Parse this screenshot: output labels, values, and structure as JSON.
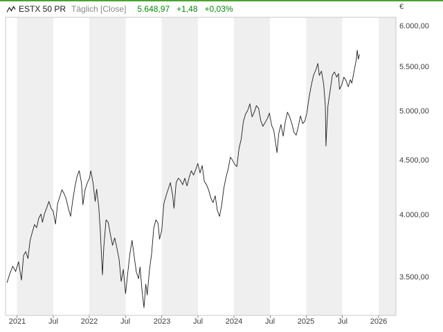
{
  "header": {
    "instrument": "ESTX 50 PR",
    "mode": "Täglich [Close]",
    "price": "5.648,97",
    "change_abs": "+1,48",
    "change_pct": "+0,03%"
  },
  "colors": {
    "accent_green": "#4aa32e",
    "quote_green": "#008800",
    "line": "#1c1c1c",
    "band_light": "#efefef",
    "band_white": "#ffffff",
    "plot_border": "#c9c9c9",
    "tick": "#8c8c8c",
    "axis_text": "#3c3c3c",
    "muted_text": "#878787"
  },
  "chart_data": {
    "type": "line",
    "title": "ESTX 50 PR",
    "subtitle": "Täglich [Close]",
    "currency": "€",
    "y_scale": "log",
    "grid": "alternating half-year vertical bands, no horizontal gridlines",
    "legend_position": "none",
    "x_range": [
      2020.84,
      2026.24
    ],
    "y_range": [
      3226,
      6117
    ],
    "last_close": 5648.97,
    "change_abs": 1.48,
    "change_pct": 0.03,
    "x_ticks": [
      {
        "t": 2021.0,
        "label": "2021"
      },
      {
        "t": 2021.5,
        "label": "Jul"
      },
      {
        "t": 2022.0,
        "label": "2022"
      },
      {
        "t": 2022.5,
        "label": "Jul"
      },
      {
        "t": 2023.0,
        "label": "2023"
      },
      {
        "t": 2023.5,
        "label": "Jul"
      },
      {
        "t": 2024.0,
        "label": "2024"
      },
      {
        "t": 2024.5,
        "label": "Jul"
      },
      {
        "t": 2025.0,
        "label": "2025"
      },
      {
        "t": 2025.5,
        "label": "Jul"
      },
      {
        "t": 2026.0,
        "label": "2026"
      }
    ],
    "y_ticks": [
      {
        "value": 3500,
        "label": "3.500,00"
      },
      {
        "value": 4000,
        "label": "4.000,00"
      },
      {
        "value": 4500,
        "label": "4.500,00"
      },
      {
        "value": 5000,
        "label": "5.000,00"
      },
      {
        "value": 5500,
        "label": "5.500,00"
      },
      {
        "value": 6000,
        "label": "6.000,00"
      }
    ],
    "series": [
      {
        "name": "ESTX 50 PR",
        "points": [
          [
            2020.86,
            3460
          ],
          [
            2020.9,
            3530
          ],
          [
            2020.94,
            3585
          ],
          [
            2020.98,
            3545
          ],
          [
            2021.02,
            3620
          ],
          [
            2021.06,
            3480
          ],
          [
            2021.09,
            3670
          ],
          [
            2021.12,
            3700
          ],
          [
            2021.15,
            3645
          ],
          [
            2021.18,
            3790
          ],
          [
            2021.21,
            3855
          ],
          [
            2021.24,
            3920
          ],
          [
            2021.27,
            3895
          ],
          [
            2021.3,
            3975
          ],
          [
            2021.33,
            4010
          ],
          [
            2021.35,
            3940
          ],
          [
            2021.38,
            4015
          ],
          [
            2021.41,
            4065
          ],
          [
            2021.44,
            4120
          ],
          [
            2021.47,
            4060
          ],
          [
            2021.5,
            4035
          ],
          [
            2021.53,
            3925
          ],
          [
            2021.56,
            4100
          ],
          [
            2021.59,
            4160
          ],
          [
            2021.62,
            4225
          ],
          [
            2021.65,
            4190
          ],
          [
            2021.68,
            4140
          ],
          [
            2021.71,
            4055
          ],
          [
            2021.74,
            3990
          ],
          [
            2021.77,
            4130
          ],
          [
            2021.8,
            4255
          ],
          [
            2021.83,
            4350
          ],
          [
            2021.86,
            4400
          ],
          [
            2021.89,
            4285
          ],
          [
            2021.91,
            4090
          ],
          [
            2021.94,
            4225
          ],
          [
            2021.97,
            4285
          ],
          [
            2022.0,
            4330
          ],
          [
            2022.02,
            4400
          ],
          [
            2022.05,
            4290
          ],
          [
            2022.08,
            4120
          ],
          [
            2022.1,
            4230
          ],
          [
            2022.13,
            4070
          ],
          [
            2022.15,
            3880
          ],
          [
            2022.18,
            3520
          ],
          [
            2022.2,
            3740
          ],
          [
            2022.23,
            3960
          ],
          [
            2022.26,
            3940
          ],
          [
            2022.29,
            3840
          ],
          [
            2022.32,
            3750
          ],
          [
            2022.35,
            3810
          ],
          [
            2022.38,
            3730
          ],
          [
            2022.41,
            3640
          ],
          [
            2022.44,
            3470
          ],
          [
            2022.47,
            3560
          ],
          [
            2022.5,
            3380
          ],
          [
            2022.53,
            3530
          ],
          [
            2022.56,
            3680
          ],
          [
            2022.59,
            3790
          ],
          [
            2022.62,
            3660
          ],
          [
            2022.65,
            3540
          ],
          [
            2022.68,
            3490
          ],
          [
            2022.7,
            3580
          ],
          [
            2022.73,
            3390
          ],
          [
            2022.755,
            3280
          ],
          [
            2022.78,
            3450
          ],
          [
            2022.8,
            3370
          ],
          [
            2022.83,
            3550
          ],
          [
            2022.86,
            3680
          ],
          [
            2022.89,
            3890
          ],
          [
            2022.92,
            3960
          ],
          [
            2022.95,
            3930
          ],
          [
            2022.97,
            3800
          ],
          [
            2023.0,
            3870
          ],
          [
            2023.03,
            4100
          ],
          [
            2023.06,
            4170
          ],
          [
            2023.09,
            4230
          ],
          [
            2023.12,
            4290
          ],
          [
            2023.15,
            4180
          ],
          [
            2023.17,
            4060
          ],
          [
            2023.2,
            4290
          ],
          [
            2023.23,
            4330
          ],
          [
            2023.26,
            4310
          ],
          [
            2023.29,
            4270
          ],
          [
            2023.32,
            4330
          ],
          [
            2023.35,
            4260
          ],
          [
            2023.38,
            4340
          ],
          [
            2023.41,
            4400
          ],
          [
            2023.44,
            4360
          ],
          [
            2023.47,
            4410
          ],
          [
            2023.5,
            4470
          ],
          [
            2023.53,
            4380
          ],
          [
            2023.56,
            4450
          ],
          [
            2023.59,
            4300
          ],
          [
            2023.62,
            4270
          ],
          [
            2023.65,
            4220
          ],
          [
            2023.68,
            4150
          ],
          [
            2023.71,
            4110
          ],
          [
            2023.74,
            4170
          ],
          [
            2023.77,
            4040
          ],
          [
            2023.8,
            3990
          ],
          [
            2023.83,
            4090
          ],
          [
            2023.86,
            4240
          ],
          [
            2023.89,
            4340
          ],
          [
            2023.92,
            4420
          ],
          [
            2023.95,
            4530
          ],
          [
            2023.98,
            4500
          ],
          [
            2024.01,
            4460
          ],
          [
            2024.04,
            4440
          ],
          [
            2024.07,
            4620
          ],
          [
            2024.1,
            4710
          ],
          [
            2024.13,
            4890
          ],
          [
            2024.16,
            4970
          ],
          [
            2024.19,
            5010
          ],
          [
            2024.22,
            5080
          ],
          [
            2024.25,
            4940
          ],
          [
            2024.28,
            4990
          ],
          [
            2024.31,
            5060
          ],
          [
            2024.34,
            5030
          ],
          [
            2024.37,
            4900
          ],
          [
            2024.4,
            4840
          ],
          [
            2024.43,
            4880
          ],
          [
            2024.46,
            4920
          ],
          [
            2024.49,
            4980
          ],
          [
            2024.52,
            4850
          ],
          [
            2024.55,
            4800
          ],
          [
            2024.58,
            4650
          ],
          [
            2024.595,
            4575
          ],
          [
            2024.62,
            4770
          ],
          [
            2024.65,
            4860
          ],
          [
            2024.68,
            4740
          ],
          [
            2024.71,
            4890
          ],
          [
            2024.74,
            4990
          ],
          [
            2024.77,
            4940
          ],
          [
            2024.8,
            4870
          ],
          [
            2024.83,
            4780
          ],
          [
            2024.86,
            4750
          ],
          [
            2024.89,
            4840
          ],
          [
            2024.92,
            4950
          ],
          [
            2024.95,
            4870
          ],
          [
            2024.98,
            4895
          ],
          [
            2025.01,
            4990
          ],
          [
            2025.04,
            5160
          ],
          [
            2025.07,
            5290
          ],
          [
            2025.1,
            5400
          ],
          [
            2025.13,
            5460
          ],
          [
            2025.16,
            5540
          ],
          [
            2025.18,
            5400
          ],
          [
            2025.21,
            5450
          ],
          [
            2025.24,
            5300
          ],
          [
            2025.263,
            5060
          ],
          [
            2025.272,
            4640
          ],
          [
            2025.285,
            4850
          ],
          [
            2025.3,
            5060
          ],
          [
            2025.33,
            5230
          ],
          [
            2025.36,
            5400
          ],
          [
            2025.39,
            5440
          ],
          [
            2025.42,
            5380
          ],
          [
            2025.445,
            5420
          ],
          [
            2025.46,
            5240
          ],
          [
            2025.49,
            5290
          ],
          [
            2025.52,
            5380
          ],
          [
            2025.55,
            5340
          ],
          [
            2025.58,
            5270
          ],
          [
            2025.61,
            5350
          ],
          [
            2025.63,
            5310
          ],
          [
            2025.65,
            5400
          ],
          [
            2025.67,
            5490
          ],
          [
            2025.69,
            5580
          ],
          [
            2025.705,
            5700
          ],
          [
            2025.72,
            5590
          ],
          [
            2025.735,
            5648.97
          ]
        ]
      }
    ]
  }
}
